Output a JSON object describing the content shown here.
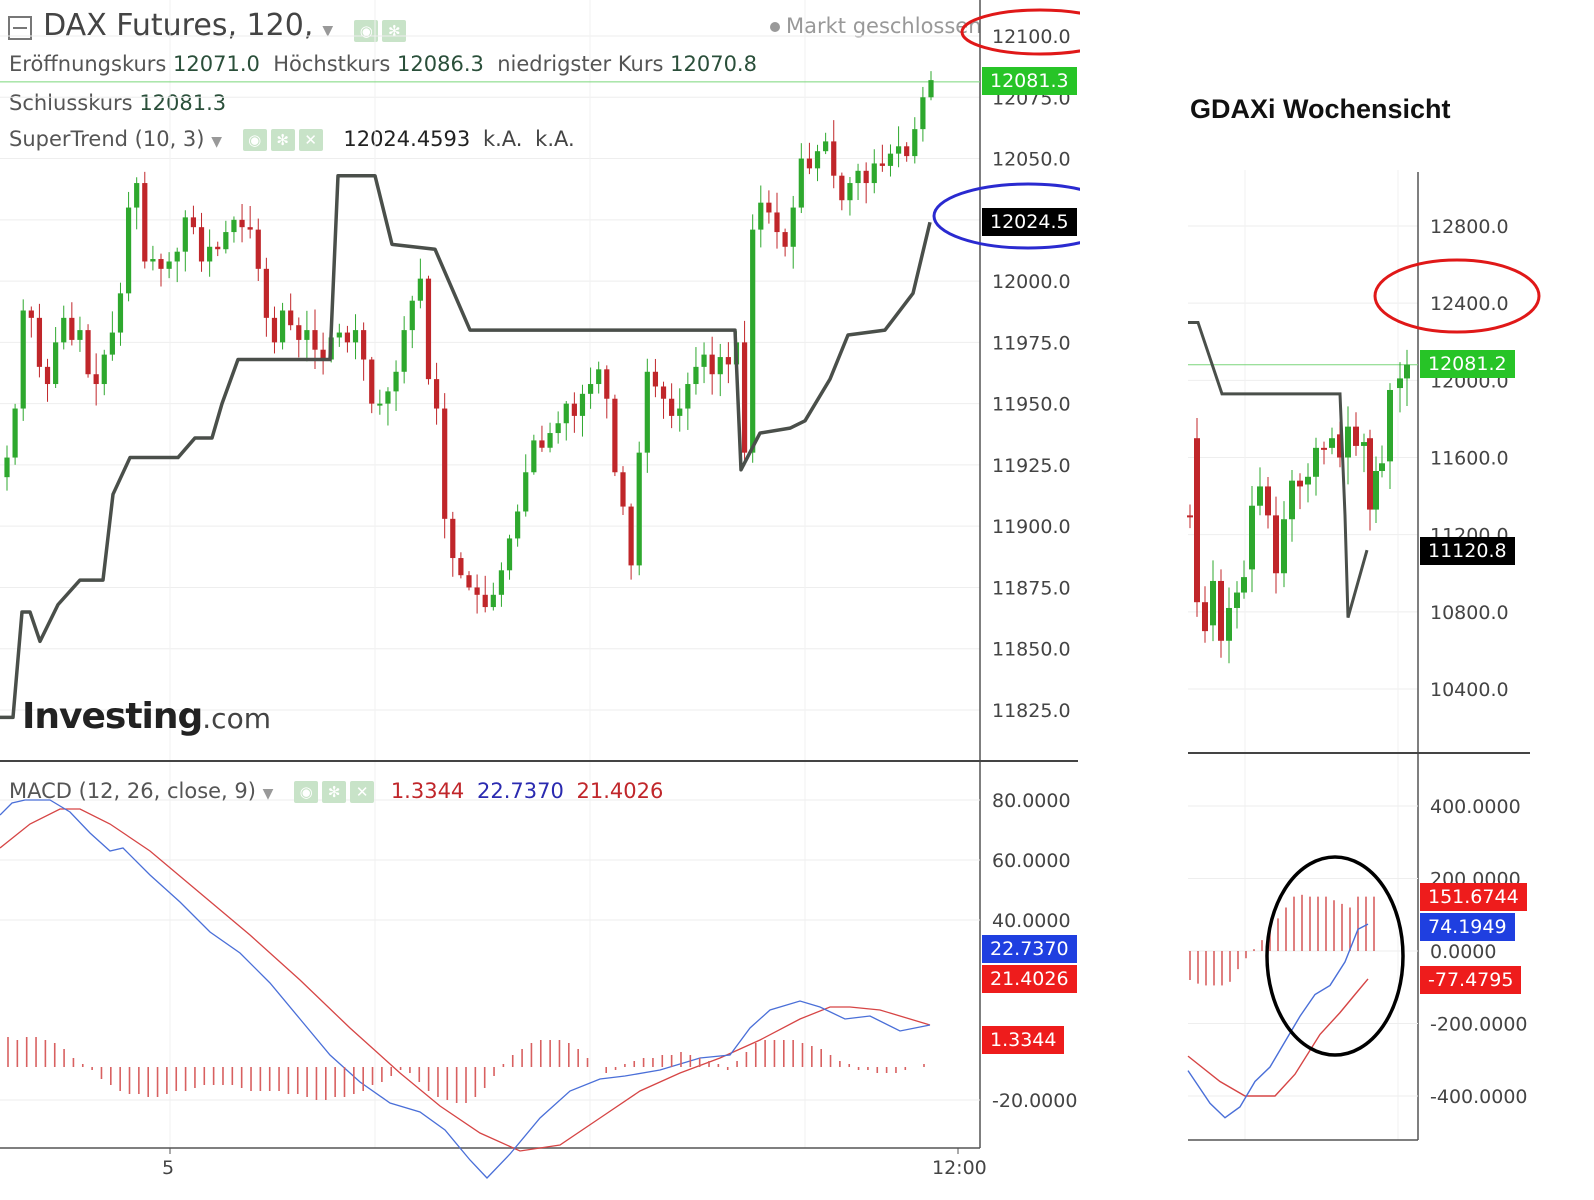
{
  "main": {
    "title": "DAX Futures, 120,",
    "market_status": "Markt geschlossen",
    "ohlc": [
      {
        "label": "Eröffnungskurs",
        "value": "12071.0"
      },
      {
        "label": "Höchstkurs",
        "value": "12086.3"
      },
      {
        "label": "niedrigster Kurs",
        "value": "12070.8"
      }
    ],
    "close": {
      "label": "Schlusskurs",
      "value": "12081.3"
    },
    "supertrend": {
      "label": "SuperTrend (10, 3)",
      "value": "12024.4593",
      "na1": "k.A.",
      "na2": "k.A."
    },
    "watermark_main": "Investing",
    "watermark_suffix": ".com",
    "price_badge": "12081.3",
    "st_badge": "12024.5",
    "y_ticks": [
      "12100.0",
      "12075.0",
      "12050.0",
      "12025.0",
      "12000.0",
      "11975.0",
      "11950.0",
      "11925.0",
      "11900.0",
      "11875.0",
      "11850.0",
      "11825.0"
    ],
    "x_ticks": [
      "5",
      "12:00"
    ],
    "colors": {
      "up": "#2ea82e",
      "down": "#c0262a",
      "supertrend": "#4a4f4a",
      "price_line": "#7bd67b"
    }
  },
  "macd": {
    "label": "MACD (12, 26, close, 9)",
    "hist_value": "1.3344",
    "macd_value": "22.7370",
    "signal_value": "21.4026",
    "y_ticks": [
      "80.0000",
      "60.0000",
      "40.0000",
      "-20.0000"
    ],
    "colors": {
      "macd": "#4a6fd8",
      "signal": "#d64545",
      "hist": "#d86060"
    }
  },
  "weekly": {
    "title": "GDAXi Wochensicht",
    "price_badge": "12081.2",
    "st_badge": "11120.8",
    "y_ticks": [
      "12800.0",
      "12400.0",
      "12000.0",
      "11600.0",
      "11200.0",
      "10800.0",
      "10400.0"
    ],
    "macd_ticks": [
      "400.0000",
      "200.0000",
      "0.0000",
      "-200.0000",
      "-400.0000"
    ],
    "hist_badge": "151.6744",
    "macd_badge": "74.1949",
    "signal_badge": "-77.4795"
  },
  "chart_data": [
    {
      "type": "candlestick",
      "title": "DAX Futures, 120",
      "ylim": [
        11810,
        12105
      ],
      "last_close": 12081.3,
      "supertrend_last": 12024.4593,
      "series": [
        {
          "name": "Eröffnungskurs",
          "values": [
            12071.0
          ]
        },
        {
          "name": "Höchstkurs",
          "values": [
            12086.3
          ]
        },
        {
          "name": "niedrigster Kurs",
          "values": [
            12070.8
          ]
        },
        {
          "name": "Schlusskurs",
          "values": [
            12081.3
          ]
        }
      ]
    },
    {
      "type": "line",
      "title": "MACD (12, 26, close, 9)",
      "ylim": [
        -28,
        92
      ],
      "series": [
        {
          "name": "MACD",
          "last": 22.737
        },
        {
          "name": "Signal",
          "last": 21.4026
        },
        {
          "name": "Histogramm",
          "last": 1.3344
        }
      ]
    },
    {
      "type": "candlestick",
      "title": "GDAXi Wochensicht",
      "ylim": [
        10250,
        13050
      ],
      "last_close": 12081.2,
      "supertrend_last": 11120.8
    }
  ]
}
